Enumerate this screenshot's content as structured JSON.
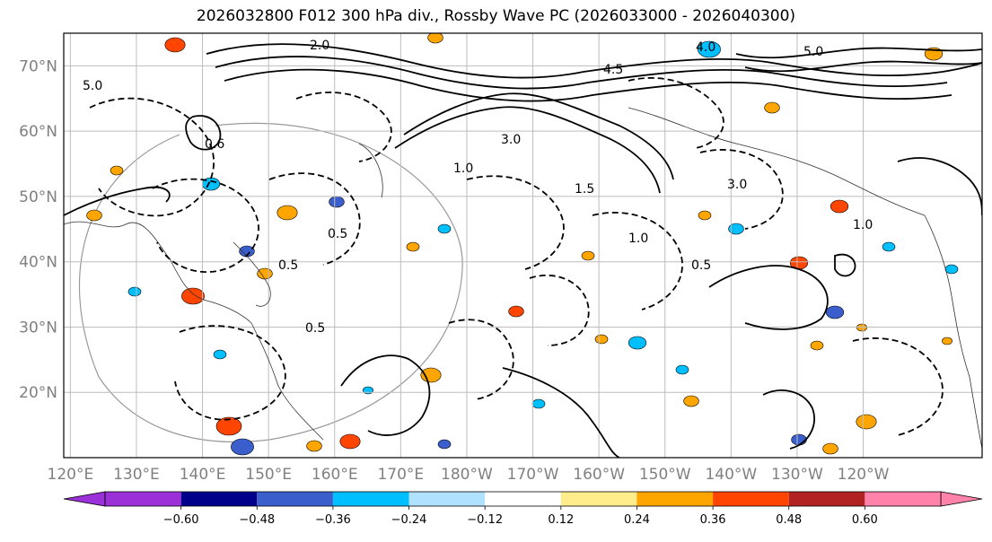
{
  "title": "2026032800 F012 300 hPa div., Rossby Wave PC (2026033000 - 2026040300)",
  "lat_labels": [
    "70°N",
    "60°N",
    "50°N",
    "40°N",
    "30°N",
    "20°N"
  ],
  "lat_values": [
    70,
    60,
    50,
    40,
    30,
    20
  ],
  "lon_labels": [
    "120°E",
    "130°E",
    "140°E",
    "150°E",
    "160°E",
    "170°E",
    "180°W",
    "170°W",
    "160°W",
    "150°W",
    "140°W",
    "130°W",
    "120°W"
  ],
  "lon_values": [
    120,
    130,
    140,
    150,
    160,
    170,
    180,
    190,
    200,
    210,
    220,
    230,
    240
  ],
  "extent": {
    "lon_min": 119,
    "lon_max": 258,
    "lat_min": 10,
    "lat_max": 75
  },
  "colorbar": {
    "ticks": [
      "−0.60",
      "−0.48",
      "−0.36",
      "−0.24",
      "−0.12",
      "0.12",
      "0.24",
      "0.36",
      "0.48",
      "0.60"
    ],
    "tick_values": [
      -0.6,
      -0.48,
      -0.36,
      -0.24,
      -0.12,
      0.12,
      0.24,
      0.36,
      0.48,
      0.6
    ],
    "colors": [
      "#9b30d9",
      "#00008b",
      "#3a5fcd",
      "#00bfff",
      "#b0e2ff",
      "#ffffff",
      "#ffec8b",
      "#ffa500",
      "#ff4500",
      "#b22222",
      "#ff82ab"
    ]
  },
  "contour_labels": [
    "2.0",
    "5.0",
    "3.0",
    "0.5",
    "1.0",
    "1.5",
    "4.0",
    "4.5",
    "0.6"
  ],
  "map_features": [
    "coastlines",
    "gridlines",
    "divergence-shading",
    "rossby-wave-contours"
  ]
}
